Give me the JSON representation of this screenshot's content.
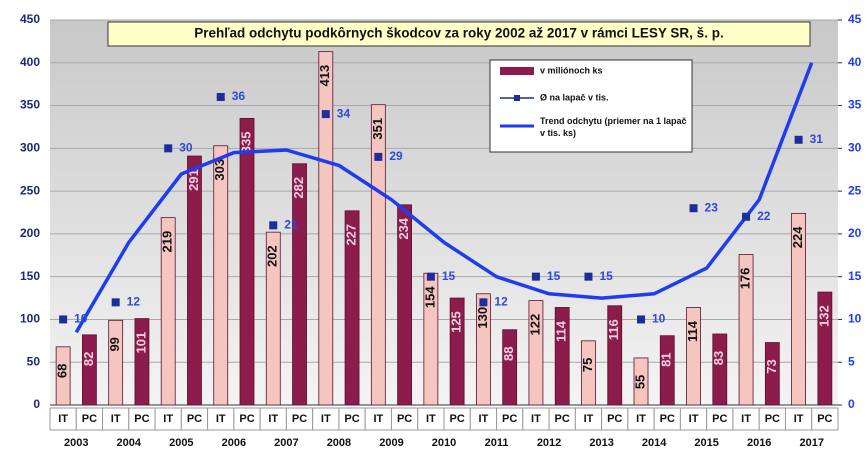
{
  "chart_data": {
    "type": "bar",
    "title": "Prehľad odchytu podkôrnych škodcov za roky 2002 až 2017 v rámci LESY SR, š. p.",
    "categories": [
      "2003",
      "2004",
      "2005",
      "2006",
      "2007",
      "2008",
      "2009",
      "2010",
      "2011",
      "2012",
      "2013",
      "2014",
      "2015",
      "2016",
      "2017"
    ],
    "groups": [
      "IT",
      "PC"
    ],
    "series": [
      {
        "name": "v miliónoch ks",
        "colors": [
          "#f5c6c0",
          "#8c1c4c"
        ],
        "values_it": [
          68,
          99,
          219,
          303,
          202,
          413,
          351,
          154,
          130,
          122,
          75,
          55,
          114,
          176,
          224
        ],
        "values_pc": [
          82,
          101,
          291,
          335,
          282,
          227,
          234,
          125,
          88,
          114,
          116,
          81,
          83,
          73,
          132
        ]
      },
      {
        "name": "Ø na lapač v tis.",
        "axis": "y2",
        "color": "#1c2e9c",
        "values": [
          10,
          12,
          30,
          36,
          21,
          34,
          29,
          15,
          12,
          15,
          15,
          10,
          23,
          22,
          31
        ]
      },
      {
        "name": "Trend odchytu (priemer na 1 lapač v tis. ks)",
        "axis": "y2",
        "color": "#1e3cf0",
        "values": [
          8.5,
          19,
          27,
          29.5,
          29.8,
          28,
          24,
          19,
          15,
          13,
          12.5,
          13,
          16,
          24,
          40
        ]
      }
    ],
    "ylim": [
      0,
      450
    ],
    "yticks": [
      0,
      50,
      100,
      150,
      200,
      250,
      300,
      350,
      400,
      450
    ],
    "y2lim": [
      0,
      45
    ],
    "y2ticks": [
      0,
      5,
      10,
      15,
      20,
      25,
      30,
      35,
      40,
      45
    ],
    "grid": true
  }
}
